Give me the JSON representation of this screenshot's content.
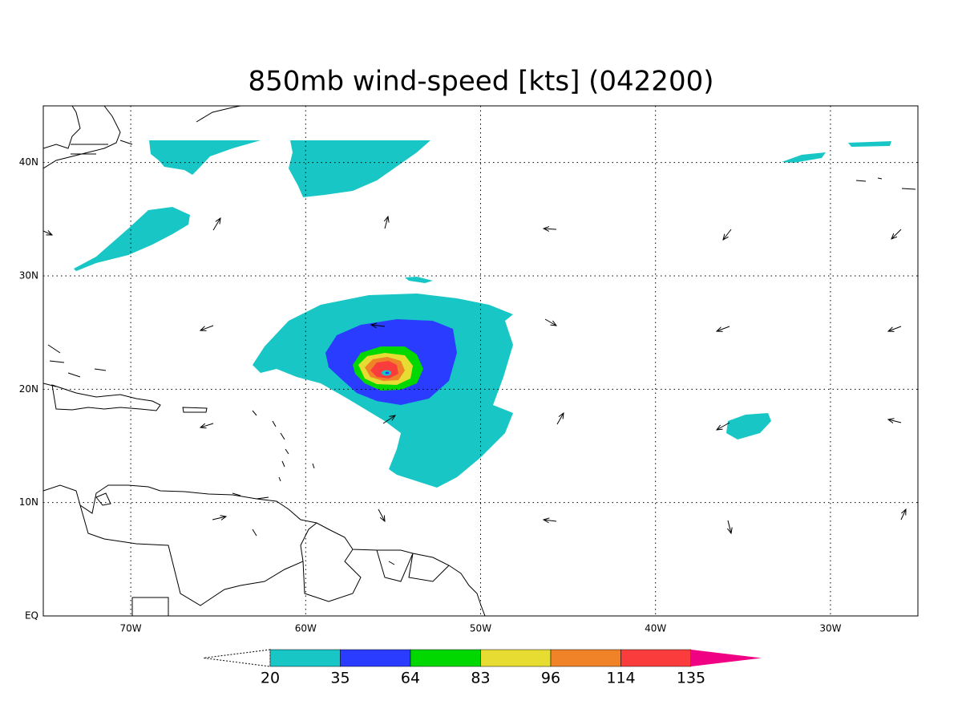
{
  "map": {
    "title": "850mb wind-speed [kts] (042200)",
    "xlim": [
      -75,
      -25
    ],
    "ylim": [
      0,
      45
    ],
    "xticks": [
      {
        "value": -70,
        "label": "70W"
      },
      {
        "value": -60,
        "label": "60W"
      },
      {
        "value": -50,
        "label": "50W"
      },
      {
        "value": -40,
        "label": "40W"
      },
      {
        "value": -30,
        "label": "30W"
      }
    ],
    "yticks": [
      {
        "value": 0,
        "label": "EQ"
      },
      {
        "value": 10,
        "label": "10N"
      },
      {
        "value": 20,
        "label": "20N"
      },
      {
        "value": 30,
        "label": "30N"
      },
      {
        "value": 40,
        "label": "40N"
      }
    ],
    "grid": true,
    "colorbar": {
      "levels": [
        20,
        35,
        64,
        83,
        96,
        114,
        135
      ],
      "colors": [
        "#19c6c6",
        "#2a3cff",
        "#00d800",
        "#e6dc32",
        "#f08228",
        "#fa3c3c",
        "#f00082"
      ]
    }
  }
}
